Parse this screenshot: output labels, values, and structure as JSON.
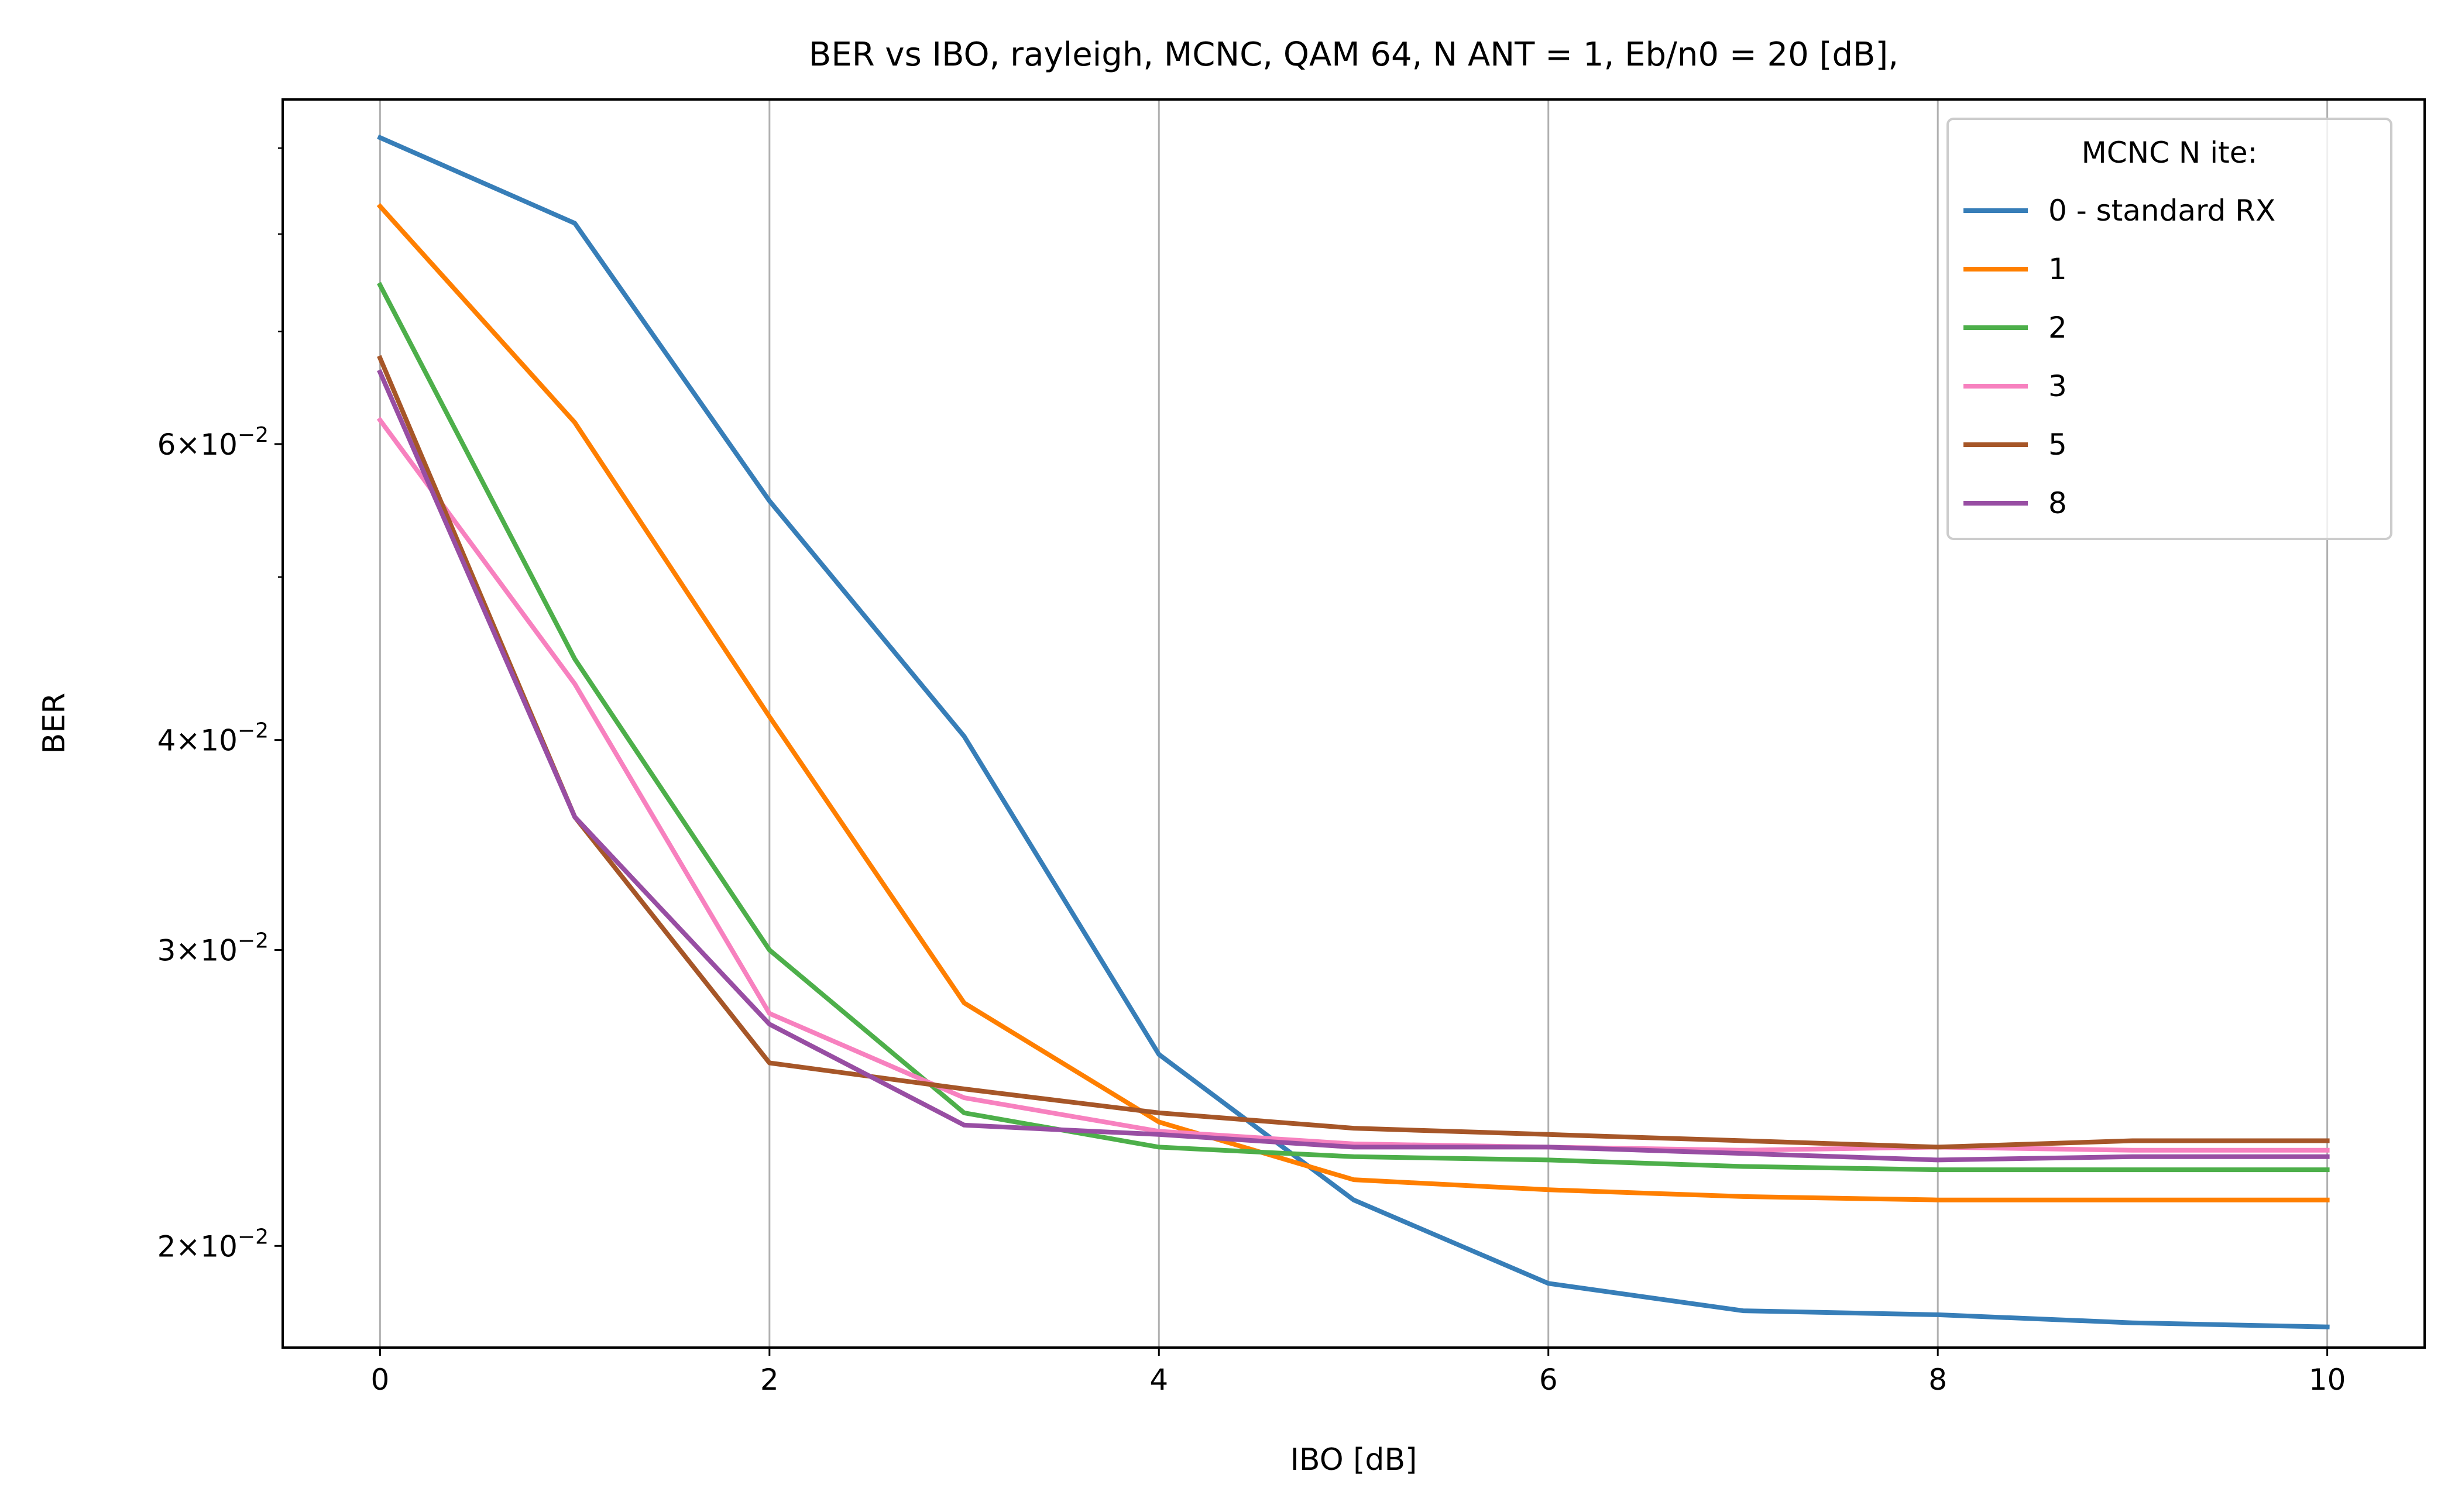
{
  "chart_data": {
    "type": "line",
    "title": "BER vs IBO, rayleigh, MCNC, QAM 64, N ANT = 1, Eb/n0 = 20 [dB],",
    "xlabel": "IBO [dB]",
    "ylabel": "BER",
    "xlim": [
      -0.5,
      10.5
    ],
    "ylim": [
      0.0174,
      0.0962
    ],
    "yscale": "log",
    "grid": "vertical lines at x ticks",
    "x": [
      0,
      1,
      2,
      3,
      4,
      5,
      6,
      7,
      8,
      9,
      10
    ],
    "x_ticks": [
      {
        "value": 0,
        "label": "0"
      },
      {
        "value": 2,
        "label": "2"
      },
      {
        "value": 4,
        "label": "4"
      },
      {
        "value": 6,
        "label": "6"
      },
      {
        "value": 8,
        "label": "8"
      },
      {
        "value": 10,
        "label": "10"
      }
    ],
    "y_major_ticks": [
      {
        "value": 0.02,
        "mantissa": "2",
        "exponent": "−2"
      },
      {
        "value": 0.03,
        "mantissa": "3",
        "exponent": "−2"
      },
      {
        "value": 0.04,
        "mantissa": "4",
        "exponent": "−2"
      },
      {
        "value": 0.06,
        "mantissa": "6",
        "exponent": "−2"
      }
    ],
    "y_minor_ticks": [
      0.05,
      0.07,
      0.08,
      0.09
    ],
    "legend": {
      "title": "MCNC N ite:",
      "position": "upper right"
    },
    "series": [
      {
        "name": "0 - standard RX",
        "color": "#377eb8",
        "values": [
          0.0913,
          0.0812,
          0.0555,
          0.0402,
          0.026,
          0.0213,
          0.019,
          0.0183,
          0.0182,
          0.018,
          0.0179
        ]
      },
      {
        "name": "1",
        "color": "#ff7f00",
        "values": [
          0.0831,
          0.0618,
          0.0413,
          0.0279,
          0.0237,
          0.0219,
          0.0216,
          0.0214,
          0.0213,
          0.0213,
          0.0213
        ]
      },
      {
        "name": "2",
        "color": "#4daf4a",
        "values": [
          0.0746,
          0.0447,
          0.03,
          0.024,
          0.0229,
          0.0226,
          0.0225,
          0.0223,
          0.0222,
          0.0222,
          0.0222
        ]
      },
      {
        "name": "3",
        "color": "#f781bf",
        "values": [
          0.062,
          0.0432,
          0.0275,
          0.0245,
          0.0234,
          0.023,
          0.0229,
          0.0228,
          0.0229,
          0.0228,
          0.0228
        ]
      },
      {
        "name": "5",
        "color": "#a65628",
        "values": [
          0.0675,
          0.036,
          0.0257,
          0.0248,
          0.024,
          0.0235,
          0.0233,
          0.0231,
          0.0229,
          0.0231,
          0.0231
        ]
      },
      {
        "name": "8",
        "color": "#984ea3",
        "values": [
          0.0662,
          0.036,
          0.0271,
          0.0236,
          0.0233,
          0.0229,
          0.0229,
          0.0227,
          0.0225,
          0.0226,
          0.0226
        ]
      }
    ]
  }
}
